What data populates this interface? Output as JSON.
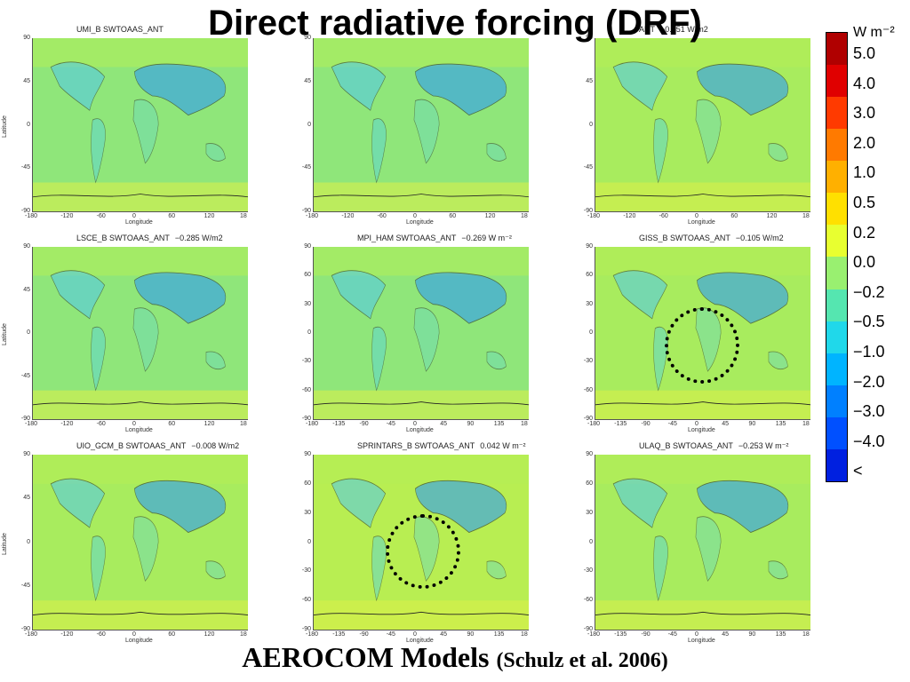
{
  "title": "Direct radiative forcing (DRF)",
  "footer": {
    "main": "AEROCOM Models",
    "citation": "(Schulz et al. 2006)"
  },
  "colorbar": {
    "unit": "W m⁻²",
    "labels": [
      "5.0",
      "4.0",
      "3.0",
      "2.0",
      "1.0",
      "0.5",
      "0.2",
      "0.0",
      "−0.2",
      "−0.5",
      "−1.0",
      "−2.0",
      "−3.0",
      "−4.0",
      "<"
    ],
    "colors": [
      "#b00000",
      "#e00000",
      "#ff3a00",
      "#ff7a00",
      "#ffb000",
      "#ffe000",
      "#e8ff30",
      "#99f070",
      "#55e6b0",
      "#20d8ea",
      "#00b4ff",
      "#0080ff",
      "#0050ff",
      "#0020e0"
    ]
  },
  "panels": [
    {
      "title": "UMI_B  SWTOAAS_ANT",
      "value": "",
      "base": "#8fe67a",
      "ylabel": "Latitude",
      "xlabel": "Longitude",
      "yticks": [
        "90",
        "45",
        "0",
        "-45",
        "-90"
      ],
      "xticks": [
        "-180",
        "-120",
        "-60",
        "0",
        "60",
        "120",
        "18"
      ]
    },
    {
      "title": "",
      "value": "",
      "base": "#8fe67a",
      "ylabel": "",
      "xlabel": "Longitude",
      "yticks": [
        "90",
        "45",
        "0",
        "-45",
        "-90"
      ],
      "xticks": [
        "-180",
        "-120",
        "-60",
        "0",
        "60",
        "120",
        "18"
      ]
    },
    {
      "title": "ANT",
      "value": "−0.351 W/m2",
      "base": "#a8ec5e",
      "ylabel": "",
      "xlabel": "Longitude",
      "yticks": [
        "90",
        "45",
        "0",
        "-45",
        "-90"
      ],
      "xticks": [
        "-180",
        "-120",
        "-60",
        "0",
        "60",
        "120",
        "18"
      ]
    },
    {
      "title": "LSCE_B  SWTOAAS_ANT",
      "value": "−0.285 W/m2",
      "base": "#8fe67a",
      "ylabel": "Latitude",
      "xlabel": "Longitude",
      "yticks": [
        "90",
        "45",
        "0",
        "-45",
        "-90"
      ],
      "xticks": [
        "-180",
        "-120",
        "-60",
        "0",
        "60",
        "120",
        "18"
      ]
    },
    {
      "title": "MPI_HAM  SWTOAAS_ANT",
      "value": "−0.269 W m⁻²",
      "base": "#8fe67a",
      "ylabel": "",
      "xlabel": "Longitude",
      "yticks": [
        "90",
        "60",
        "30",
        "0",
        "-30",
        "-60",
        "-90"
      ],
      "xticks": [
        "-180",
        "-135",
        "-90",
        "-45",
        "0",
        "45",
        "90",
        "135",
        "18"
      ]
    },
    {
      "title": "GISS_B  SWTOAAS_ANT",
      "value": "−0.105 W/m2",
      "base": "#a8ec5e",
      "ylabel": "",
      "xlabel": "Longitude",
      "yticks": [
        "90",
        "60",
        "30",
        "0",
        "-30",
        "-60",
        "-90"
      ],
      "xticks": [
        "-180",
        "-135",
        "-90",
        "-45",
        "0",
        "45",
        "90",
        "135",
        "18"
      ]
    },
    {
      "title": "UIO_GCM_B  SWTOAAS_ANT",
      "value": "−0.008 W/m2",
      "base": "#a8ec5e",
      "ylabel": "Latitude",
      "xlabel": "Longitude",
      "yticks": [
        "90",
        "45",
        "0",
        "-45",
        "-90"
      ],
      "xticks": [
        "-180",
        "-120",
        "-60",
        "0",
        "60",
        "120",
        "18"
      ]
    },
    {
      "title": "SPRINTARS_B  SWTOAAS_ANT",
      "value": "0.042 W m⁻²",
      "base": "#b8ee52",
      "ylabel": "",
      "xlabel": "Longitude",
      "yticks": [
        "90",
        "60",
        "30",
        "0",
        "-30",
        "-60",
        "-90"
      ],
      "xticks": [
        "-180",
        "-135",
        "-90",
        "-45",
        "0",
        "45",
        "90",
        "135",
        "18"
      ]
    },
    {
      "title": "ULAQ_B  SWTOAAS_ANT",
      "value": "−0.253 W m⁻²",
      "base": "#a8ec5e",
      "ylabel": "",
      "xlabel": "Longitude",
      "yticks": [
        "90",
        "60",
        "30",
        "0",
        "-30",
        "-60",
        "-90"
      ],
      "xticks": [
        "-180",
        "-135",
        "-90",
        "-45",
        "0",
        "45",
        "90",
        "135",
        "18"
      ]
    }
  ]
}
